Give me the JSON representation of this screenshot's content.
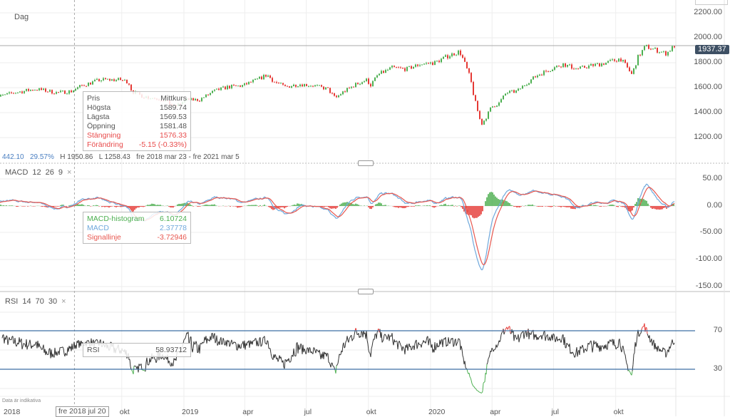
{
  "period_label": "Dag",
  "summary": {
    "change": "442.10",
    "change_pct": "29.57%",
    "high": "H 1950.86",
    "low": "L 1258.43",
    "range": "fre 2018 mar 23 - fre 2021 mar 5"
  },
  "last_price": "1937.37",
  "tooltip_price": {
    "header_left": "Pris",
    "header_right": "Mittkurs",
    "rows": [
      {
        "label": "Högsta",
        "value": "1589.74"
      },
      {
        "label": "Lägsta",
        "value": "1569.53"
      },
      {
        "label": "Öppning",
        "value": "1581.48"
      },
      {
        "label": "Stängning",
        "value": "1576.33"
      },
      {
        "label": "Förändring",
        "value": "-5.15 (-0.33%)"
      }
    ]
  },
  "macd": {
    "title": "MACD",
    "params": [
      "12",
      "26",
      "9"
    ],
    "close": "×",
    "rows": [
      {
        "label": "MACD-histogram",
        "value": "6.10724"
      },
      {
        "label": "MACD",
        "value": "2.37778"
      },
      {
        "label": "Signallinje",
        "value": "-3.72946"
      }
    ]
  },
  "rsi": {
    "title": "RSI",
    "params": [
      "14",
      "70",
      "30"
    ],
    "close": "×",
    "label": "RSI",
    "value": "58.93712"
  },
  "disclaimer": "Data är indikativa",
  "crosshair_date": "fre 2018 jul 20",
  "colors": {
    "up": "#4caf50",
    "down": "#e53935",
    "macd": "#6fa8dc",
    "signal": "#e8574f",
    "rsi": "#333333",
    "rsi_bands": "#3d6fa3",
    "price_tag": "#3e5064"
  },
  "chart_data": [
    {
      "type": "candlestick",
      "title": "",
      "yticks": [
        "2200.00",
        "2000.00",
        "1800.00",
        "1600.00",
        "1400.00",
        "1200.00"
      ],
      "ylim": [
        1100,
        2300
      ],
      "xticks": [
        {
          "label": "2018",
          "date": "2018-03-23"
        },
        {
          "label": "okt",
          "date": "2018-10-01"
        },
        {
          "label": "2019",
          "date": "2019-01-01"
        },
        {
          "label": "apr",
          "date": "2019-04-01"
        },
        {
          "label": "jul",
          "date": "2019-07-01"
        },
        {
          "label": "okt",
          "date": "2019-10-01"
        },
        {
          "label": "2020",
          "date": "2020-01-01"
        },
        {
          "label": "apr",
          "date": "2020-04-01"
        },
        {
          "label": "jul",
          "date": "2020-07-01"
        },
        {
          "label": "okt",
          "date": "2020-10-01"
        }
      ],
      "close_series": [
        [
          "2018-03-23",
          1514
        ],
        [
          "2018-04-25",
          1560
        ],
        [
          "2018-05-27",
          1589
        ],
        [
          "2018-06-27",
          1560
        ],
        [
          "2018-07-18",
          1571
        ],
        [
          "2018-08-03",
          1617
        ],
        [
          "2018-08-30",
          1663
        ],
        [
          "2018-09-30",
          1663
        ],
        [
          "2018-10-11",
          1646
        ],
        [
          "2018-10-16",
          1571
        ],
        [
          "2018-11-01",
          1531
        ],
        [
          "2018-12-02",
          1503
        ],
        [
          "2018-12-18",
          1446
        ],
        [
          "2019-01-05",
          1503
        ],
        [
          "2019-01-24",
          1503
        ],
        [
          "2019-02-14",
          1571
        ],
        [
          "2019-03-07",
          1606
        ],
        [
          "2019-03-29",
          1617
        ],
        [
          "2019-04-19",
          1663
        ],
        [
          "2019-05-04",
          1703
        ],
        [
          "2019-05-15",
          1646
        ],
        [
          "2019-05-31",
          1606
        ],
        [
          "2019-06-21",
          1629
        ],
        [
          "2019-07-12",
          1617
        ],
        [
          "2019-08-02",
          1589
        ],
        [
          "2019-08-13",
          1514
        ],
        [
          "2019-08-23",
          1560
        ],
        [
          "2019-09-13",
          1629
        ],
        [
          "2019-09-29",
          1663
        ],
        [
          "2019-10-04",
          1617
        ],
        [
          "2019-10-15",
          1703
        ],
        [
          "2019-11-05",
          1760
        ],
        [
          "2019-11-26",
          1749
        ],
        [
          "2019-12-17",
          1789
        ],
        [
          "2020-01-07",
          1800
        ],
        [
          "2020-01-28",
          1857
        ],
        [
          "2020-02-13",
          1891
        ],
        [
          "2020-02-19",
          1817
        ],
        [
          "2020-02-29",
          1674
        ],
        [
          "2020-03-05",
          1531
        ],
        [
          "2020-03-16",
          1303
        ],
        [
          "2020-03-23",
          1360
        ],
        [
          "2020-03-31",
          1446
        ],
        [
          "2020-04-11",
          1474
        ],
        [
          "2020-04-22",
          1560
        ],
        [
          "2020-05-08",
          1571
        ],
        [
          "2020-05-24",
          1646
        ],
        [
          "2020-06-08",
          1703
        ],
        [
          "2020-06-24",
          1743
        ],
        [
          "2020-07-15",
          1789
        ],
        [
          "2020-08-05",
          1749
        ],
        [
          "2020-08-26",
          1777
        ],
        [
          "2020-09-17",
          1800
        ],
        [
          "2020-10-08",
          1834
        ],
        [
          "2020-10-18",
          1760
        ],
        [
          "2020-10-25",
          1703
        ],
        [
          "2020-11-03",
          1846
        ],
        [
          "2020-11-14",
          1931
        ],
        [
          "2020-11-29",
          1903
        ],
        [
          "2020-12-15",
          1874
        ],
        [
          "2020-12-27",
          1937
        ]
      ]
    },
    {
      "type": "line",
      "title": "MACD",
      "yticks": [
        "50.00",
        "0.00",
        "-50.00",
        "-100.00",
        "-150.00"
      ],
      "ylim": [
        -165,
        80
      ]
    },
    {
      "type": "line",
      "title": "RSI",
      "yticks": [
        "70",
        "30"
      ],
      "ylim": [
        0,
        100
      ],
      "bands": [
        70,
        30
      ]
    }
  ]
}
